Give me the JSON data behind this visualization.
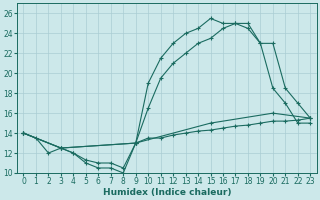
{
  "xlabel": "Humidex (Indice chaleur)",
  "xlim": [
    -0.5,
    23.5
  ],
  "ylim": [
    10,
    27
  ],
  "xticks": [
    0,
    1,
    2,
    3,
    4,
    5,
    6,
    7,
    8,
    9,
    10,
    11,
    12,
    13,
    14,
    15,
    16,
    17,
    18,
    19,
    20,
    21,
    22,
    23
  ],
  "yticks": [
    10,
    12,
    14,
    16,
    18,
    20,
    22,
    24,
    26
  ],
  "bg_color": "#cce8ea",
  "grid_color": "#aacdd4",
  "line_color": "#1a6b60",
  "line1_x": [
    0,
    1,
    2,
    3,
    4,
    5,
    6,
    7,
    8,
    9,
    10,
    11,
    12,
    13,
    14,
    15,
    16,
    17,
    18,
    19,
    20,
    21,
    22,
    23
  ],
  "line1_y": [
    14,
    13.5,
    12,
    12.5,
    12,
    11,
    10.5,
    10.5,
    10,
    13,
    19,
    21.5,
    23,
    24,
    24.5,
    25.5,
    25,
    25,
    24.5,
    23,
    18.5,
    17,
    15,
    15
  ],
  "line2_x": [
    0,
    3,
    9,
    10,
    11,
    12,
    13,
    14,
    15,
    16,
    17,
    18,
    19,
    20,
    21,
    22,
    23
  ],
  "line2_y": [
    14,
    12.5,
    13,
    16.5,
    19.5,
    21,
    22,
    23,
    23.5,
    24.5,
    25,
    25,
    23,
    23,
    18.5,
    17,
    15.5
  ],
  "line3_x": [
    0,
    3,
    9,
    15,
    20,
    23
  ],
  "line3_y": [
    14,
    12.5,
    13,
    15,
    16,
    15.5
  ],
  "line4_x": [
    0,
    3,
    4,
    5,
    6,
    7,
    8,
    9,
    10,
    11,
    12,
    13,
    14,
    15,
    16,
    17,
    18,
    19,
    20,
    21,
    22,
    23
  ],
  "line4_y": [
    14,
    12.5,
    12,
    11.3,
    11,
    11,
    10.5,
    13,
    13.5,
    13.5,
    13.8,
    14,
    14.2,
    14.3,
    14.5,
    14.7,
    14.8,
    15,
    15.2,
    15.2,
    15.3,
    15.5
  ],
  "tick_fontsize": 5.5,
  "xlabel_fontsize": 6.5
}
